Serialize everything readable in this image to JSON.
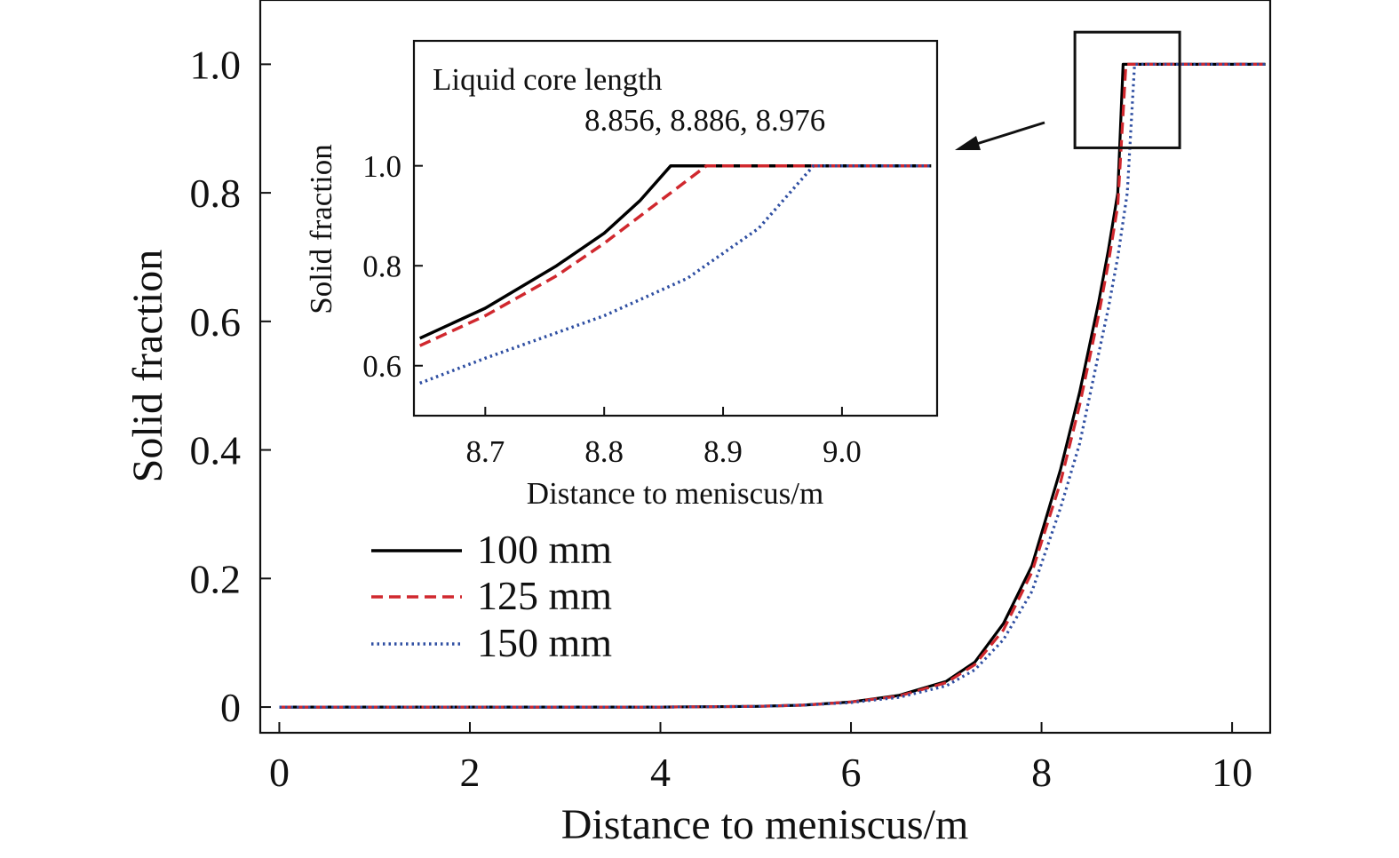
{
  "chart_data": [
    {
      "id": "main",
      "type": "line",
      "xlabel": "Distance to meniscus/m",
      "ylabel": "Solid fraction",
      "xlim": [
        -0.2,
        10.4
      ],
      "ylim": [
        -0.04,
        1.1
      ],
      "x_ticks": [
        0,
        2,
        4,
        6,
        8,
        10
      ],
      "x_tick_labels": [
        "0",
        "2",
        "4",
        "6",
        "8",
        "10"
      ],
      "y_ticks": [
        0,
        0.2,
        0.4,
        0.6,
        0.8,
        1.0
      ],
      "y_tick_labels": [
        "0",
        "0.2",
        "0.4",
        "0.6",
        "0.8",
        "1.0"
      ],
      "grid": false,
      "legend_position": "lower-left",
      "series": [
        {
          "name": "100 mm",
          "color": "#000000",
          "style": "solid",
          "x": [
            0,
            1,
            2,
            3,
            4,
            5,
            5.5,
            6,
            6.5,
            7,
            7.3,
            7.6,
            7.9,
            8.2,
            8.4,
            8.6,
            8.7,
            8.8,
            8.856,
            10.35
          ],
          "y": [
            0,
            0,
            0,
            0,
            0,
            0.001,
            0.003,
            0.008,
            0.018,
            0.04,
            0.07,
            0.13,
            0.22,
            0.37,
            0.49,
            0.63,
            0.71,
            0.8,
            1.0,
            1.0
          ]
        },
        {
          "name": "125 mm",
          "color": "#d0282e",
          "style": "dashed",
          "x": [
            0,
            1,
            2,
            3,
            4,
            5,
            5.5,
            6,
            6.5,
            7,
            7.3,
            7.6,
            7.9,
            8.2,
            8.4,
            8.6,
            8.7,
            8.8,
            8.886,
            10.35
          ],
          "y": [
            0,
            0,
            0,
            0,
            0,
            0.001,
            0.003,
            0.008,
            0.017,
            0.038,
            0.066,
            0.12,
            0.21,
            0.35,
            0.47,
            0.61,
            0.69,
            0.78,
            1.0,
            1.0
          ]
        },
        {
          "name": "150 mm",
          "color": "#2f4fa2",
          "style": "dotted",
          "x": [
            0,
            1,
            2,
            3,
            4,
            5,
            5.5,
            6,
            6.5,
            7,
            7.3,
            7.6,
            7.9,
            8.2,
            8.4,
            8.6,
            8.7,
            8.8,
            8.9,
            8.976,
            10.35
          ],
          "y": [
            0,
            0,
            0,
            0,
            0,
            0.001,
            0.003,
            0.007,
            0.015,
            0.033,
            0.058,
            0.105,
            0.18,
            0.31,
            0.41,
            0.55,
            0.62,
            0.7,
            0.8,
            1.0,
            1.0
          ]
        }
      ],
      "zoom_box": {
        "x": [
          8.35,
          9.45
        ],
        "y": [
          0.87,
          1.05
        ]
      }
    },
    {
      "id": "inset",
      "type": "line",
      "xlabel": "Distance to meniscus/m",
      "ylabel": "Solid fraction",
      "xlim": [
        8.64,
        9.08
      ],
      "ylim": [
        0.5,
        1.25
      ],
      "x_ticks": [
        8.7,
        8.8,
        8.9,
        9.0
      ],
      "x_tick_labels": [
        "8.7",
        "8.8",
        "8.9",
        "9.0"
      ],
      "y_ticks": [
        0.6,
        0.8,
        1.0
      ],
      "y_tick_labels": [
        "0.6",
        "0.8",
        "1.0"
      ],
      "grid": false,
      "annotation_title": "Liquid core length",
      "annotation_values": "8.856, 8.886, 8.976",
      "series": [
        {
          "name": "100 mm",
          "color": "#000000",
          "style": "solid",
          "x": [
            8.645,
            8.7,
            8.76,
            8.8,
            8.83,
            8.856,
            9.075
          ],
          "y": [
            0.655,
            0.715,
            0.8,
            0.865,
            0.93,
            1.0,
            1.0
          ]
        },
        {
          "name": "125 mm",
          "color": "#d0282e",
          "style": "dashed",
          "x": [
            8.645,
            8.7,
            8.76,
            8.8,
            8.85,
            8.886,
            9.075
          ],
          "y": [
            0.64,
            0.7,
            0.78,
            0.845,
            0.935,
            1.0,
            1.0
          ]
        },
        {
          "name": "150 mm",
          "color": "#2f4fa2",
          "style": "dotted",
          "x": [
            8.645,
            8.7,
            8.8,
            8.87,
            8.93,
            8.976,
            9.075
          ],
          "y": [
            0.565,
            0.615,
            0.7,
            0.775,
            0.875,
            1.0,
            1.0
          ]
        }
      ]
    }
  ]
}
